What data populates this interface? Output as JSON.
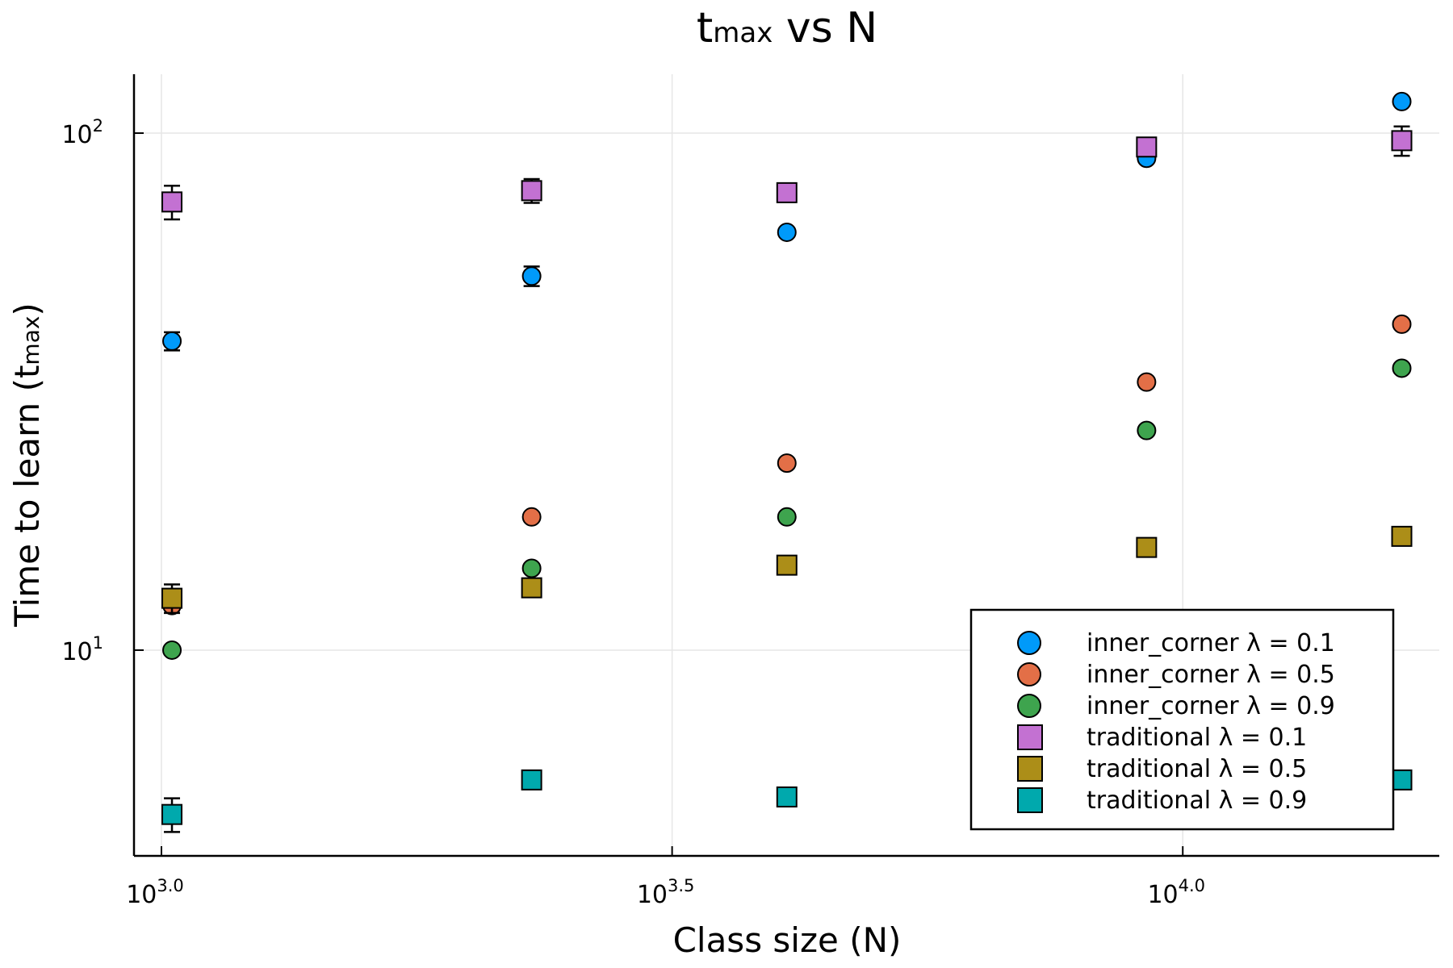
{
  "chart_data": {
    "type": "scatter",
    "title": [
      "t",
      "max",
      " vs N"
    ],
    "x_label": "Class size (N)",
    "y_label": [
      "Time to learn (t",
      "max",
      ")"
    ],
    "x": [
      1024,
      2304,
      4096,
      9216,
      16384
    ],
    "log_x": true,
    "log_y": true,
    "grid": true,
    "legend": "bottom-right",
    "xlim": [
      940,
      17830
    ],
    "ylim": [
      4,
      130
    ],
    "xticks": [
      {
        "value": 1000,
        "label": "10",
        "exponent": "3.0"
      },
      {
        "value": 3162.28,
        "label": "10",
        "exponent": "3.5"
      },
      {
        "value": 10000,
        "label": "10",
        "exponent": "4.0"
      }
    ],
    "yticks": [
      {
        "value": 10,
        "label": "10",
        "exponent": "1"
      },
      {
        "value": 100,
        "label": "10",
        "exponent": "2"
      }
    ],
    "series": [
      {
        "name": "inner_corner λ = 0.1",
        "color": "#009afa",
        "marker": "circle",
        "values": [
          39.6,
          52.9,
          64.3,
          89.4,
          115.1
        ],
        "errors": [
          1.6,
          2.3,
          0.8,
          null,
          null
        ]
      },
      {
        "name": "inner_corner λ = 0.5",
        "color": "#e36f47",
        "marker": "circle",
        "values": [
          12.2,
          18.1,
          23.0,
          33.0,
          42.7
        ],
        "errors": [
          null,
          null,
          null,
          null,
          null
        ]
      },
      {
        "name": "inner_corner λ = 0.9",
        "color": "#3ea44e",
        "marker": "circle",
        "values": [
          10.0,
          14.4,
          18.1,
          26.6,
          35.1
        ],
        "errors": [
          null,
          null,
          null,
          null,
          null
        ]
      },
      {
        "name": "traditional λ = 0.1",
        "color": "#c371d2",
        "marker": "square",
        "values": [
          73.6,
          77.4,
          76.7,
          94.0,
          96.7
        ],
        "errors": [
          5.5,
          4.1,
          null,
          null,
          6.3
        ]
      },
      {
        "name": "traditional λ = 0.5",
        "color": "#ac8e18",
        "marker": "square",
        "values": [
          12.6,
          13.2,
          14.6,
          15.8,
          16.6
        ],
        "errors": [
          0.8,
          null,
          null,
          null,
          null
        ]
      },
      {
        "name": "traditional λ = 0.9",
        "color": "#00a9ad",
        "marker": "square",
        "values": [
          4.81,
          5.61,
          5.2,
          null,
          5.61
        ],
        "errors": [
          0.36,
          null,
          null,
          null,
          null
        ]
      }
    ]
  }
}
